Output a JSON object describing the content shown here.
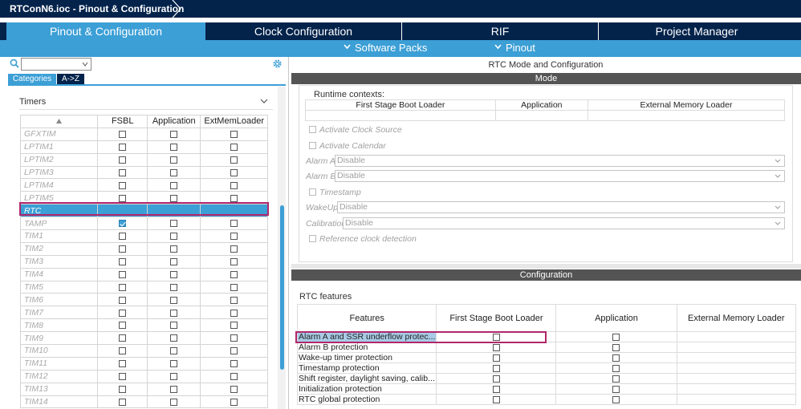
{
  "window": {
    "title": "RTConN6.ioc - Pinout & Configuration"
  },
  "tabs": [
    {
      "label": "Pinout & Configuration",
      "active": true
    },
    {
      "label": "Clock Configuration",
      "active": false
    },
    {
      "label": "RIF",
      "active": false
    },
    {
      "label": "Project Manager",
      "active": false
    }
  ],
  "subbar": {
    "software_packs": "Software Packs",
    "pinout": "Pinout"
  },
  "left": {
    "search": {
      "value": ""
    },
    "category_tabs": [
      {
        "label": "Categories",
        "active": true
      },
      {
        "label": "A->Z",
        "active": false
      }
    ],
    "group_title": "Timers",
    "table": {
      "columns": [
        "FSBL",
        "Application",
        "ExtMemLoader"
      ],
      "rows": [
        {
          "name": "GFXTIM",
          "fsbl": false
        },
        {
          "name": "LPTIM1",
          "fsbl": false
        },
        {
          "name": "LPTIM2",
          "fsbl": false
        },
        {
          "name": "LPTIM3",
          "fsbl": false
        },
        {
          "name": "LPTIM4",
          "fsbl": false
        },
        {
          "name": "LPTIM5",
          "fsbl": false
        },
        {
          "name": "RTC",
          "fsbl": false,
          "selected": true
        },
        {
          "name": "TAMP",
          "fsbl": true
        },
        {
          "name": "TIM1",
          "fsbl": false
        },
        {
          "name": "TIM2",
          "fsbl": false
        },
        {
          "name": "TIM3",
          "fsbl": false
        },
        {
          "name": "TIM4",
          "fsbl": false
        },
        {
          "name": "TIM5",
          "fsbl": false
        },
        {
          "name": "TIM6",
          "fsbl": false
        },
        {
          "name": "TIM7",
          "fsbl": false
        },
        {
          "name": "TIM8",
          "fsbl": false
        },
        {
          "name": "TIM9",
          "fsbl": false
        },
        {
          "name": "TIM10",
          "fsbl": false
        },
        {
          "name": "TIM11",
          "fsbl": false
        },
        {
          "name": "TIM12",
          "fsbl": false
        },
        {
          "name": "TIM13",
          "fsbl": false
        },
        {
          "name": "TIM14",
          "fsbl": false
        }
      ]
    }
  },
  "right": {
    "title": "RTC Mode and Configuration",
    "mode_band": "Mode",
    "runtime_label": "Runtime contexts:",
    "runtime_cols": [
      "First Stage Boot Loader",
      "Application",
      "External Memory Loader"
    ],
    "mode": {
      "activate_clock": "Activate Clock Source",
      "activate_calendar": "Activate Calendar",
      "alarm_a_label": "Alarm A",
      "alarm_a_value": "Disable",
      "alarm_b_label": "Alarm B",
      "alarm_b_value": "Disable",
      "timestamp": "Timestamp",
      "wakeup_label": "WakeUp",
      "wakeup_value": "Disable",
      "calibration_label": "Calibration",
      "calibration_value": "Disable",
      "ref_clock": "Reference clock detection"
    },
    "config_band": "Configuration",
    "features_label": "RTC features",
    "features_cols": [
      "Features",
      "First Stage Boot Loader",
      "Application",
      "External Memory Loader"
    ],
    "features": [
      "Alarm A and SSR underflow protec...",
      "Alarm B protection",
      "Wake-up timer protection",
      "Timestamp protection",
      "Shift register, daylight saving, calib...",
      "Initialization protection",
      "RTC global protection"
    ]
  },
  "colors": {
    "navy": "#03234b",
    "accent": "#3c9fd6",
    "band": "#545454",
    "highlight_border": "#b0276b"
  }
}
